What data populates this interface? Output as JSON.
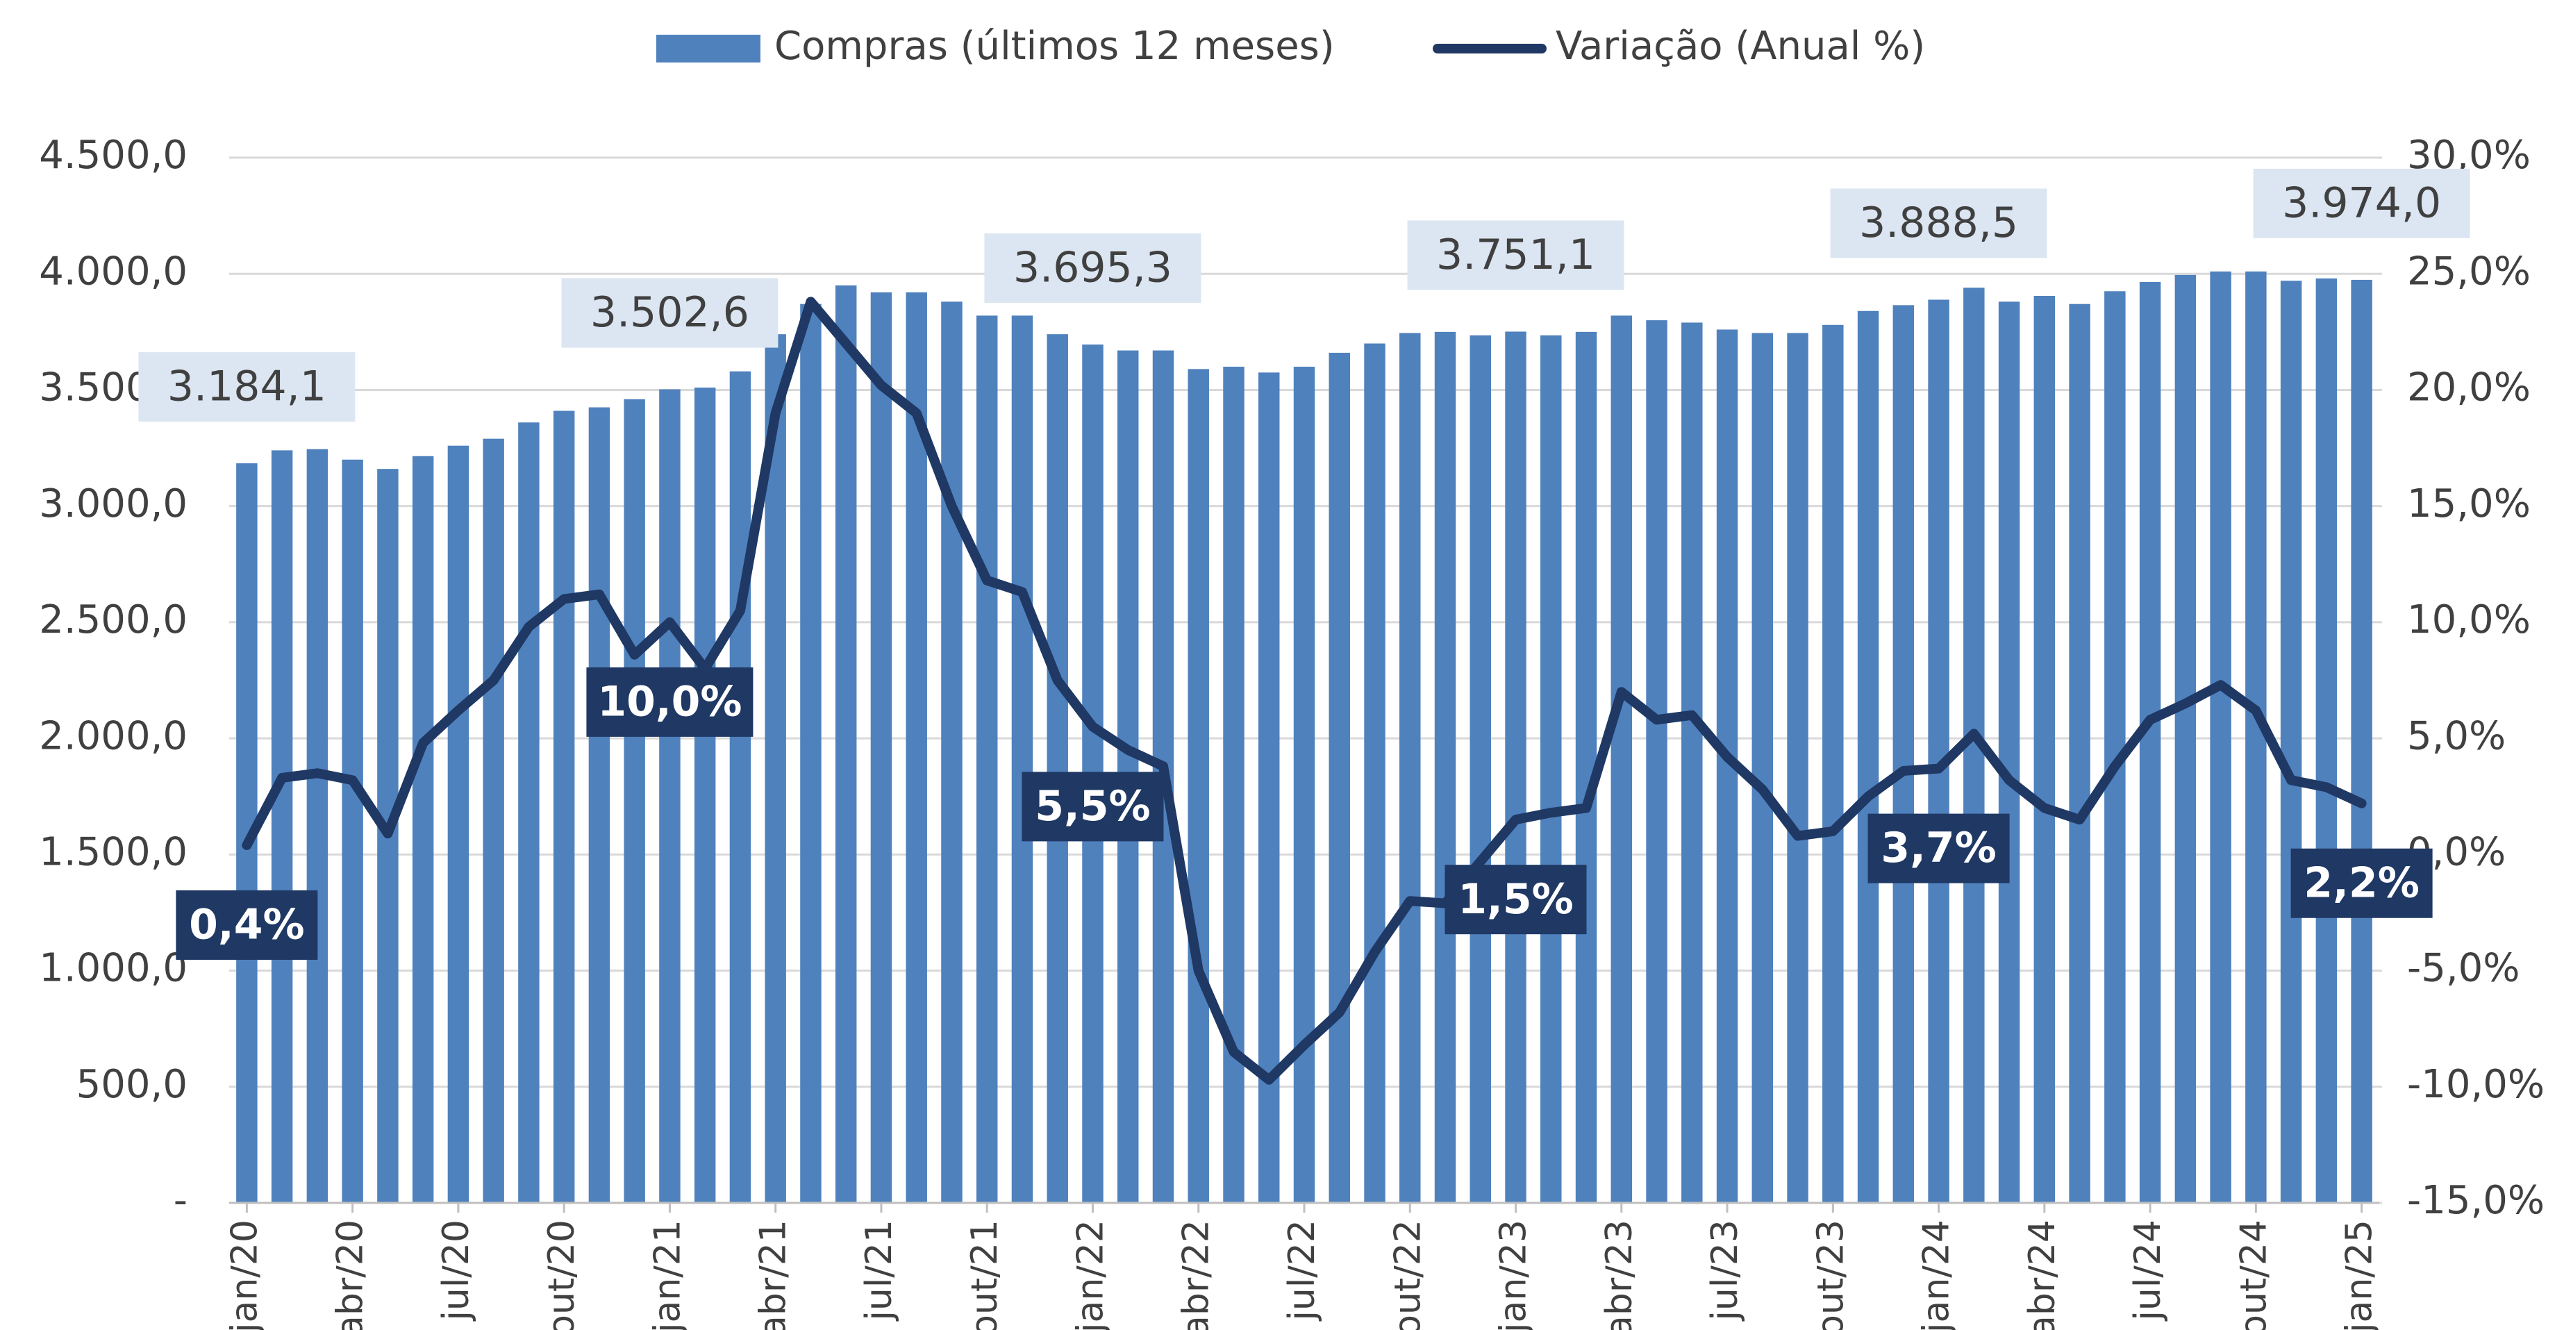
{
  "chart_data": {
    "type": "bar_line",
    "categories": [
      "jan/20",
      null,
      null,
      "abr/20",
      null,
      null,
      "jul/20",
      null,
      null,
      "out/20",
      null,
      null,
      "jan/21",
      null,
      null,
      "abr/21",
      null,
      null,
      "jul/21",
      null,
      null,
      "out/21",
      null,
      null,
      "jan/22",
      null,
      null,
      "abr/22",
      null,
      null,
      "jul/22",
      null,
      null,
      "out/22",
      null,
      null,
      "jan/23",
      null,
      null,
      "abr/23",
      null,
      null,
      "jul/23",
      null,
      null,
      "out/23",
      null,
      null,
      "jan/24",
      null,
      null,
      "abr/24",
      null,
      null,
      "jul/24",
      null,
      null,
      "out/24",
      null,
      null,
      "jan/25"
    ],
    "series": [
      {
        "name": "Compras (últimos 12 meses)",
        "type": "bar",
        "color": "#4f81bd",
        "values": [
          3184.1,
          3240,
          3245,
          3200,
          3160,
          3215,
          3260,
          3290,
          3360,
          3410,
          3425,
          3460,
          3502.6,
          3510,
          3580,
          3740,
          3870,
          3950,
          3920,
          3920,
          3880,
          3820,
          3820,
          3740,
          3695.3,
          3670,
          3670,
          3590,
          3600,
          3575,
          3600,
          3660,
          3700,
          3745,
          3750,
          3735,
          3751.1,
          3735,
          3750,
          3820,
          3800,
          3790,
          3760,
          3745,
          3745,
          3780,
          3840,
          3865,
          3888.5,
          3940,
          3880,
          3905,
          3870,
          3925,
          3965,
          3995,
          4010,
          4010,
          3970,
          3980,
          3974.0
        ],
        "value_labels": [
          "3.184,1",
          null,
          null,
          null,
          null,
          null,
          null,
          null,
          null,
          null,
          null,
          null,
          "3.502,6",
          null,
          null,
          null,
          null,
          null,
          null,
          null,
          null,
          null,
          null,
          null,
          "3.695,3",
          null,
          null,
          null,
          null,
          null,
          null,
          null,
          null,
          null,
          null,
          null,
          "3.751,1",
          null,
          null,
          null,
          null,
          null,
          null,
          null,
          null,
          null,
          null,
          null,
          "3.888,5",
          null,
          null,
          null,
          null,
          null,
          null,
          null,
          null,
          null,
          null,
          null,
          "3.974,0"
        ]
      },
      {
        "name": "Variação (Anual %)",
        "type": "line",
        "axis": "y2",
        "color": "#1f3864",
        "values": [
          0.4,
          3.3,
          3.5,
          3.2,
          0.9,
          4.8,
          6.2,
          7.5,
          9.8,
          11.0,
          11.2,
          8.6,
          10.0,
          8.0,
          10.5,
          19.0,
          23.8,
          22.0,
          20.2,
          19.0,
          15.0,
          11.8,
          11.3,
          7.5,
          5.5,
          4.5,
          3.8,
          -5.0,
          -8.5,
          -9.7,
          -8.2,
          -6.8,
          -4.2,
          -2.0,
          -2.1,
          -0.3,
          1.5,
          1.8,
          2.0,
          7.0,
          5.8,
          6.0,
          4.2,
          2.8,
          0.8,
          1.0,
          2.5,
          3.6,
          3.7,
          5.2,
          3.2,
          2.0,
          1.5,
          3.8,
          5.8,
          6.5,
          7.3,
          6.2,
          3.2,
          2.9,
          2.2
        ],
        "value_labels": [
          "0,4%",
          null,
          null,
          null,
          null,
          null,
          null,
          null,
          null,
          null,
          null,
          null,
          "10,0%",
          null,
          null,
          null,
          null,
          null,
          null,
          null,
          null,
          null,
          null,
          null,
          "5,5%",
          null,
          null,
          null,
          null,
          null,
          null,
          null,
          null,
          null,
          null,
          null,
          "1,5%",
          null,
          null,
          null,
          null,
          null,
          null,
          null,
          null,
          null,
          null,
          null,
          "3,7%",
          null,
          null,
          null,
          null,
          null,
          null,
          null,
          null,
          null,
          null,
          null,
          "2,2%"
        ]
      }
    ],
    "ylim": [
      0,
      4500
    ],
    "yticks": [
      {
        "value": 0,
        "label": "-"
      },
      {
        "value": 500,
        "label": "500,0"
      },
      {
        "value": 1000,
        "label": "1.000,0"
      },
      {
        "value": 1500,
        "label": "1.500,0"
      },
      {
        "value": 2000,
        "label": "2.000,0"
      },
      {
        "value": 2500,
        "label": "2.500,0"
      },
      {
        "value": 3000,
        "label": "3.000,0"
      },
      {
        "value": 3500,
        "label": "3.500,0"
      },
      {
        "value": 4000,
        "label": "4.000,0"
      },
      {
        "value": 4500,
        "label": "4.500,0"
      }
    ],
    "y2lim": [
      -15,
      30
    ],
    "y2ticks": [
      {
        "value": -15,
        "label": "-15,0%"
      },
      {
        "value": -10,
        "label": "-10,0%"
      },
      {
        "value": -5,
        "label": "-5,0%"
      },
      {
        "value": 0,
        "label": "0,0%"
      },
      {
        "value": 5,
        "label": "5,0%"
      },
      {
        "value": 10,
        "label": "10,0%"
      },
      {
        "value": 15,
        "label": "15,0%"
      },
      {
        "value": 20,
        "label": "20,0%"
      },
      {
        "value": 25,
        "label": "25,0%"
      },
      {
        "value": 30,
        "label": "30,0%"
      }
    ],
    "grid": true,
    "legend": "top"
  }
}
